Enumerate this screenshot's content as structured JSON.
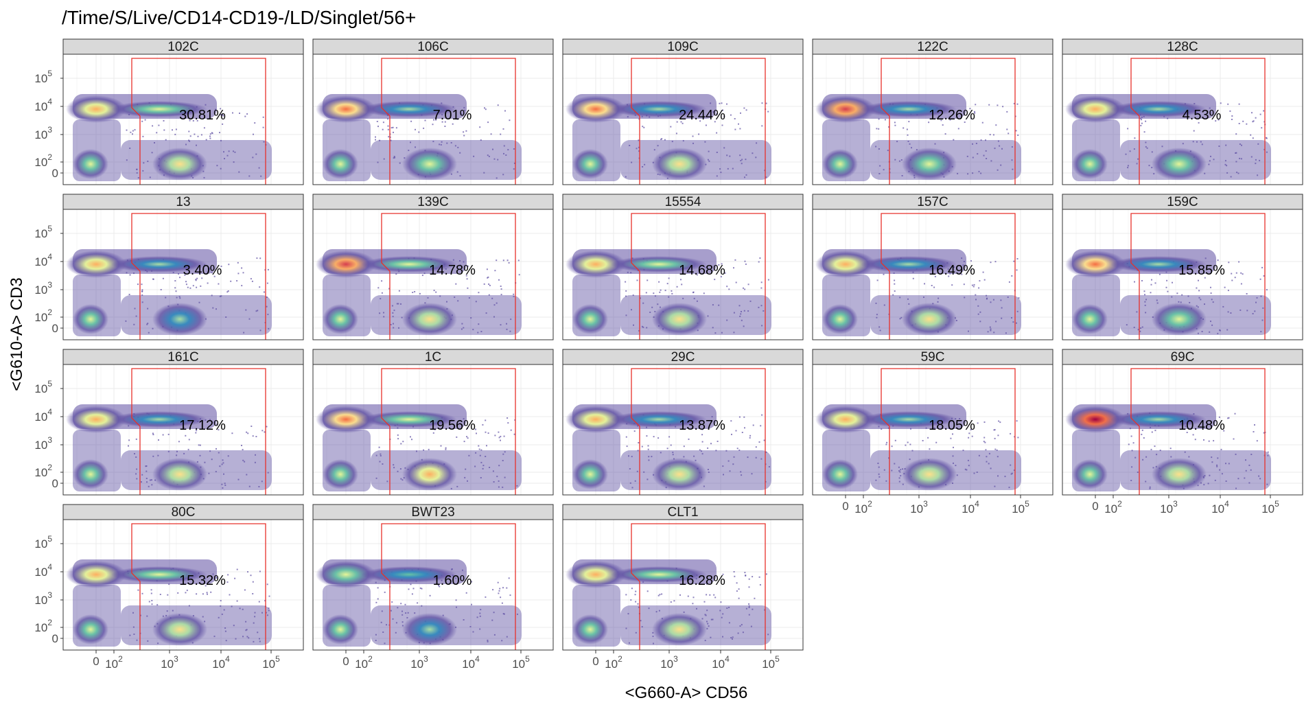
{
  "chart_data": {
    "type": "heatmap",
    "title": "/Time/S/Live/CD14-CD19-/LD/Singlet/56+",
    "xlabel": "<G660-A> CD56",
    "ylabel": "<G610-A> CD3",
    "layout": {
      "columns": 5,
      "rows": 4
    },
    "x_ticks": [
      {
        "base": "0",
        "exp": ""
      },
      {
        "base": "10",
        "exp": "2"
      },
      {
        "base": "10",
        "exp": "3"
      },
      {
        "base": "10",
        "exp": "4"
      },
      {
        "base": "10",
        "exp": "5"
      }
    ],
    "y_ticks": [
      {
        "base": "10",
        "exp": "5"
      },
      {
        "base": "10",
        "exp": "4"
      },
      {
        "base": "10",
        "exp": "3"
      },
      {
        "base": "10",
        "exp": "2"
      },
      {
        "base": "0",
        "exp": ""
      }
    ],
    "gate_color": "#e8302a",
    "strip_color": "#d9d9d9",
    "palette": [
      "#5e4fa2",
      "#3288bd",
      "#66c2a5",
      "#abdda4",
      "#e6f598",
      "#fee08b",
      "#fdae61",
      "#f46d43",
      "#d53e4f",
      "#9e0142"
    ],
    "panels": [
      {
        "label": "102C",
        "percent": "30.81%",
        "peak": 0.55,
        "nk": 0.45
      },
      {
        "label": "106C",
        "percent": "7.01%",
        "peak": 0.75,
        "nk": 0.25
      },
      {
        "label": "109C",
        "percent": "24.44%",
        "peak": 0.65,
        "nk": 0.4
      },
      {
        "label": "122C",
        "percent": "12.26%",
        "peak": 0.8,
        "nk": 0.35
      },
      {
        "label": "128C",
        "percent": "4.53%",
        "peak": 0.6,
        "nk": 0.25
      },
      {
        "label": "13",
        "percent": "3.40%",
        "peak": 0.6,
        "nk": 0.2
      },
      {
        "label": "139C",
        "percent": "14.78%",
        "peak": 0.85,
        "nk": 0.45
      },
      {
        "label": "15554",
        "percent": "14.68%",
        "peak": 0.55,
        "nk": 0.45
      },
      {
        "label": "157C",
        "percent": "16.49%",
        "peak": 0.55,
        "nk": 0.4
      },
      {
        "label": "159C",
        "percent": "15.85%",
        "peak": 0.7,
        "nk": 0.35
      },
      {
        "label": "161C",
        "percent": "17.12%",
        "peak": 0.5,
        "nk": 0.4
      },
      {
        "label": "1C",
        "percent": "19.56%",
        "peak": 0.65,
        "nk": 0.5
      },
      {
        "label": "29C",
        "percent": "13.87%",
        "peak": 0.55,
        "nk": 0.4
      },
      {
        "label": "59C",
        "percent": "18.05%",
        "peak": 0.6,
        "nk": 0.4
      },
      {
        "label": "69C",
        "percent": "10.48%",
        "peak": 0.95,
        "nk": 0.4
      },
      {
        "label": "80C",
        "percent": "15.32%",
        "peak": 0.55,
        "nk": 0.45
      },
      {
        "label": "BWT23",
        "percent": "1.60%",
        "peak": 0.35,
        "nk": 0.1
      },
      {
        "label": "CLT1",
        "percent": "16.28%",
        "peak": 0.55,
        "nk": 0.45
      }
    ]
  }
}
